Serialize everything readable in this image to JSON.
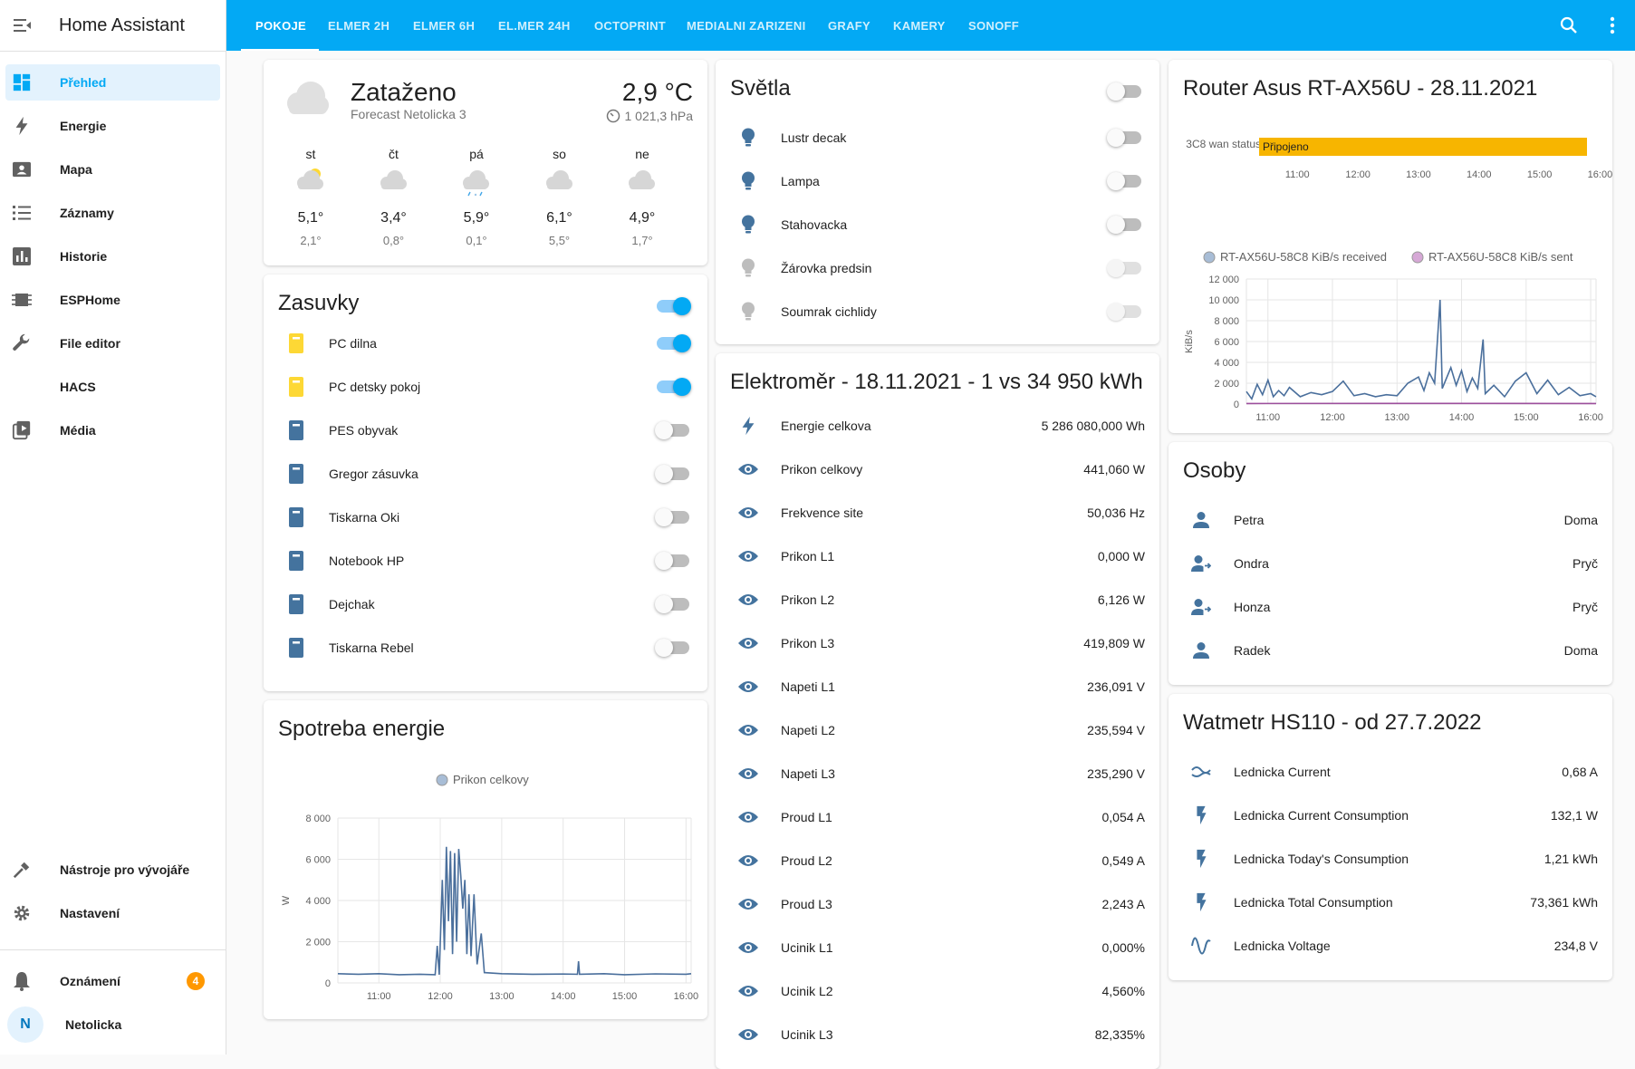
{
  "app": {
    "title": "Home Assistant"
  },
  "sidebar": {
    "items": [
      {
        "label": "Přehled",
        "icon": "dashboard-icon",
        "active": true
      },
      {
        "label": "Energie",
        "icon": "lightning-icon"
      },
      {
        "label": "Mapa",
        "icon": "map-icon"
      },
      {
        "label": "Záznamy",
        "icon": "list-icon"
      },
      {
        "label": "Historie",
        "icon": "chart-bar-icon"
      },
      {
        "label": "ESPHome",
        "icon": "chip-icon"
      },
      {
        "label": "File editor",
        "icon": "wrench-icon"
      },
      {
        "label": "HACS",
        "icon": "hacs-icon"
      },
      {
        "label": "Média",
        "icon": "play-box-icon"
      }
    ],
    "dev_tools": "Nástroje pro vývojáře",
    "settings": "Nastavení",
    "notifications": {
      "label": "Oznámení",
      "count": "4"
    },
    "user": {
      "initial": "N",
      "name": "Netolicka"
    }
  },
  "tabs": [
    "POKOJE",
    "ELMER 2H",
    "ELMER 6H",
    "EL.MER 24H",
    "OCTOPRINT",
    "MEDIALNI ZARIZENI",
    "GRAFY",
    "KAMERY",
    "SONOFF"
  ],
  "weather": {
    "condition": "Zataženo",
    "name": "Forecast Netolicka 3",
    "temp": "2,9 °C",
    "pressure": "1 021,3 hPa",
    "forecast": [
      {
        "day": "st",
        "hi": "5,1°",
        "lo": "2,1°",
        "icon": "partly-cloudy-icon"
      },
      {
        "day": "čt",
        "hi": "3,4°",
        "lo": "0,8°",
        "icon": "cloudy-icon"
      },
      {
        "day": "pá",
        "hi": "5,9°",
        "lo": "0,1°",
        "icon": "snowy-rainy-icon"
      },
      {
        "day": "so",
        "hi": "6,1°",
        "lo": "5,5°",
        "icon": "cloudy-icon"
      },
      {
        "day": "ne",
        "hi": "4,9°",
        "lo": "1,7°",
        "icon": "cloudy-icon"
      }
    ]
  },
  "zasuvky": {
    "title": "Zasuvky",
    "header_on": true,
    "items": [
      {
        "name": "PC dilna",
        "on": true
      },
      {
        "name": "PC detsky pokoj",
        "on": true
      },
      {
        "name": "PES obyvak",
        "on": false
      },
      {
        "name": "Gregor zásuvka",
        "on": false
      },
      {
        "name": "Tiskarna Oki",
        "on": false
      },
      {
        "name": "Notebook HP",
        "on": false
      },
      {
        "name": "Dejchak",
        "on": false
      },
      {
        "name": "Tiskarna Rebel",
        "on": false
      }
    ]
  },
  "svetla": {
    "title": "Světla",
    "items": [
      {
        "name": "Lustr decak",
        "disabled": false
      },
      {
        "name": "Lampa",
        "disabled": false
      },
      {
        "name": "Stahovacka",
        "disabled": false
      },
      {
        "name": "Žárovka predsin",
        "disabled": true
      },
      {
        "name": "Soumrak cichlidy",
        "disabled": true
      }
    ]
  },
  "elektromer": {
    "title": "Elektroměr - 18.11.2021 - 1 vs 34 950 kWh",
    "items": [
      {
        "name": "Energie celkova",
        "value": "5 286 080,000 Wh",
        "icon": "lightning-icon"
      },
      {
        "name": "Prikon celkovy",
        "value": "441,060 W",
        "icon": "eye-icon"
      },
      {
        "name": "Frekvence site",
        "value": "50,036 Hz",
        "icon": "eye-icon"
      },
      {
        "name": "Prikon L1",
        "value": "0,000 W",
        "icon": "eye-icon"
      },
      {
        "name": "Prikon L2",
        "value": "6,126 W",
        "icon": "eye-icon"
      },
      {
        "name": "Prikon L3",
        "value": "419,809 W",
        "icon": "eye-icon"
      },
      {
        "name": "Napeti L1",
        "value": "236,091 V",
        "icon": "eye-icon"
      },
      {
        "name": "Napeti L2",
        "value": "235,594 V",
        "icon": "eye-icon"
      },
      {
        "name": "Napeti L3",
        "value": "235,290 V",
        "icon": "eye-icon"
      },
      {
        "name": "Proud L1",
        "value": "0,054 A",
        "icon": "eye-icon"
      },
      {
        "name": "Proud L2",
        "value": "0,549 A",
        "icon": "eye-icon"
      },
      {
        "name": "Proud L3",
        "value": "2,243 A",
        "icon": "eye-icon"
      },
      {
        "name": "Ucinik L1",
        "value": "0,000%",
        "icon": "eye-icon"
      },
      {
        "name": "Ucinik L2",
        "value": "4,560%",
        "icon": "eye-icon"
      },
      {
        "name": "Ucinik L3",
        "value": "82,335%",
        "icon": "eye-icon"
      }
    ]
  },
  "router": {
    "title": "Router Asus RT-AX56U - 28.11.2021",
    "timeline_label": "3C8 wan status",
    "timeline_value": "Připojeno"
  },
  "osoby": {
    "title": "Osoby",
    "items": [
      {
        "name": "Petra",
        "state": "Doma",
        "icon": "person-icon"
      },
      {
        "name": "Ondra",
        "state": "Pryč",
        "icon": "person-away-icon"
      },
      {
        "name": "Honza",
        "state": "Pryč",
        "icon": "person-away-icon"
      },
      {
        "name": "Radek",
        "state": "Doma",
        "icon": "person-icon"
      }
    ]
  },
  "watmetr": {
    "title": "Watmetr HS110 - od 27.7.2022",
    "items": [
      {
        "name": "Lednicka Current",
        "value": "0,68 A",
        "icon": "current-ac-icon"
      },
      {
        "name": "Lednicka Current Consumption",
        "value": "132,1 W",
        "icon": "flash-icon"
      },
      {
        "name": "Lednicka Today's Consumption",
        "value": "1,21 kWh",
        "icon": "flash-icon"
      },
      {
        "name": "Lednicka Total Consumption",
        "value": "73,361 kWh",
        "icon": "flash-icon"
      },
      {
        "name": "Lednicka Voltage",
        "value": "234,8 V",
        "icon": "sine-wave-icon"
      }
    ]
  },
  "spotreba": {
    "title": "Spotreba energie"
  },
  "chart_data": [
    {
      "type": "line",
      "title": "Spotreba energie",
      "ylabel": "W",
      "ylim": [
        0,
        8000
      ],
      "yticks": [
        "0",
        "2 000",
        "4 000",
        "6 000",
        "8 000"
      ],
      "xticks": [
        "11:00",
        "12:00",
        "13:00",
        "14:00",
        "15:00",
        "16:00"
      ],
      "legend_placement": "top",
      "series": [
        {
          "name": "Prikon celkovy",
          "color": "#4a6f9c",
          "points": [
            [
              "10:20",
              450
            ],
            [
              "10:40",
              420
            ],
            [
              "11:00",
              450
            ],
            [
              "11:20",
              400
            ],
            [
              "11:40",
              420
            ],
            [
              "11:55",
              400
            ],
            [
              "11:57",
              1800
            ],
            [
              "11:59",
              400
            ],
            [
              "12:02",
              5000
            ],
            [
              "12:04",
              1600
            ],
            [
              "12:06",
              6600
            ],
            [
              "12:08",
              3000
            ],
            [
              "12:10",
              6400
            ],
            [
              "12:12",
              1400
            ],
            [
              "12:14",
              6300
            ],
            [
              "12:16",
              2000
            ],
            [
              "12:18",
              6500
            ],
            [
              "12:20",
              5200
            ],
            [
              "12:22",
              3600
            ],
            [
              "12:24",
              5000
            ],
            [
              "12:26",
              1400
            ],
            [
              "12:28",
              4300
            ],
            [
              "12:30",
              1300
            ],
            [
              "12:33",
              4300
            ],
            [
              "12:36",
              900
            ],
            [
              "12:40",
              2400
            ],
            [
              "12:43",
              500
            ],
            [
              "13:00",
              450
            ],
            [
              "13:30",
              420
            ],
            [
              "14:00",
              430
            ],
            [
              "14:14",
              420
            ],
            [
              "14:15",
              1050
            ],
            [
              "14:16",
              420
            ],
            [
              "14:40",
              450
            ],
            [
              "15:00",
              400
            ],
            [
              "15:30",
              440
            ],
            [
              "16:00",
              420
            ],
            [
              "16:05",
              450
            ]
          ]
        }
      ]
    },
    {
      "type": "line",
      "title": "Router Asus RT-AX56U - 28.11.2021",
      "ylabel": "KiB/s",
      "ylim": [
        0,
        12000
      ],
      "yticks": [
        "0",
        "2 000",
        "4 000",
        "6 000",
        "8 000",
        "10 000",
        "12 000"
      ],
      "xticks": [
        "11:00",
        "12:00",
        "13:00",
        "14:00",
        "15:00",
        "16:00"
      ],
      "legend_placement": "top",
      "series": [
        {
          "name": "RT-AX56U-58C8 KiB/s received",
          "color": "#4a6f9c",
          "points": [
            [
              "10:40",
              1200
            ],
            [
              "10:45",
              500
            ],
            [
              "10:50",
              1900
            ],
            [
              "10:55",
              900
            ],
            [
              "11:00",
              2300
            ],
            [
              "11:05",
              700
            ],
            [
              "11:10",
              1300
            ],
            [
              "11:15",
              800
            ],
            [
              "11:20",
              1600
            ],
            [
              "11:30",
              700
            ],
            [
              "11:40",
              1100
            ],
            [
              "11:50",
              900
            ],
            [
              "12:00",
              1200
            ],
            [
              "12:10",
              2200
            ],
            [
              "12:20",
              800
            ],
            [
              "12:30",
              1000
            ],
            [
              "12:40",
              700
            ],
            [
              "12:50",
              900
            ],
            [
              "13:00",
              800
            ],
            [
              "13:10",
              2000
            ],
            [
              "13:20",
              2600
            ],
            [
              "13:25",
              1300
            ],
            [
              "13:30",
              3000
            ],
            [
              "13:35",
              2000
            ],
            [
              "13:40",
              10000
            ],
            [
              "13:42",
              1500
            ],
            [
              "13:50",
              3500
            ],
            [
              "13:55",
              1800
            ],
            [
              "14:00",
              3200
            ],
            [
              "14:05",
              1200
            ],
            [
              "14:10",
              2500
            ],
            [
              "14:15",
              1500
            ],
            [
              "14:20",
              6200
            ],
            [
              "14:22",
              1000
            ],
            [
              "14:30",
              1800
            ],
            [
              "14:40",
              700
            ],
            [
              "14:50",
              2200
            ],
            [
              "15:00",
              3000
            ],
            [
              "15:10",
              1000
            ],
            [
              "15:20",
              2300
            ],
            [
              "15:30",
              900
            ],
            [
              "15:40",
              1600
            ],
            [
              "15:50",
              800
            ],
            [
              "16:00",
              1000
            ],
            [
              "16:05",
              700
            ]
          ]
        },
        {
          "name": "RT-AX56U-58C8 KiB/s sent",
          "color": "#9c4f9c",
          "points": [
            [
              "10:40",
              50
            ],
            [
              "13:00",
              60
            ],
            [
              "16:05",
              50
            ]
          ]
        }
      ]
    }
  ]
}
